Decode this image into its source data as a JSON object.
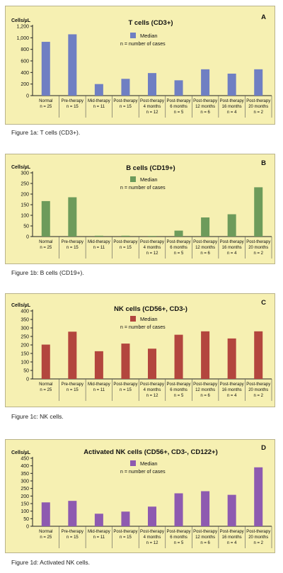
{
  "categories": [
    [
      "Normal",
      "n = 25"
    ],
    [
      "Pre-therapy",
      "n = 15"
    ],
    [
      "Mid-therapy",
      "n = 11"
    ],
    [
      "Post-therapy",
      "n = 15"
    ],
    [
      "Post-therapy",
      "4 months",
      "n = 12"
    ],
    [
      "Post-therapy",
      "6 months",
      "n = 5"
    ],
    [
      "Post-therapy",
      "12 months",
      "n = 6"
    ],
    [
      "Post-therapy",
      "16 months",
      "n = 4"
    ],
    [
      "Post-therapy",
      "20 months",
      "n = 2"
    ]
  ],
  "legend_note": "n = number of cases",
  "captions": [
    "Figure 1a: T cells (CD3+).",
    "Figure 1b: B cells (CD19+).",
    "Figure 1c: NK cells.",
    "Figure 1d: Activated NK cells."
  ],
  "chart_data": [
    {
      "type": "bar",
      "letter": "A",
      "title": "T cells (CD3+)",
      "ylabel": "Cells/µL",
      "series_name": "Median",
      "color": "#6f7fc3",
      "ylim": [
        0,
        1200
      ],
      "yticks": [
        "0",
        "200",
        "400",
        "600",
        "800",
        "1,000",
        "1,200"
      ],
      "values": [
        930,
        1060,
        200,
        290,
        390,
        265,
        455,
        380,
        455
      ]
    },
    {
      "type": "bar",
      "letter": "B",
      "title": "B cells (CD19+)",
      "ylabel": "Cells/µL",
      "series_name": "Median",
      "color": "#6d9b5b",
      "ylim": [
        0,
        300
      ],
      "yticks": [
        "0",
        "50",
        "100",
        "150",
        "200",
        "250",
        "300"
      ],
      "values": [
        167,
        185,
        4,
        4,
        3,
        28,
        90,
        105,
        232
      ]
    },
    {
      "type": "bar",
      "letter": "C",
      "title": "NK cells (CD56+, CD3-)",
      "ylabel": "Cells/µL",
      "series_name": "Median",
      "color": "#b3463e",
      "ylim": [
        0,
        400
      ],
      "yticks": [
        "0",
        "50",
        "100",
        "150",
        "200",
        "250",
        "300",
        "350",
        "400"
      ],
      "values": [
        202,
        278,
        163,
        208,
        178,
        260,
        280,
        238,
        280
      ]
    },
    {
      "type": "bar",
      "letter": "D",
      "title": "Activated NK cells (CD56+, CD3-, CD122+)",
      "ylabel": "Cells/µL",
      "series_name": "Median",
      "color": "#8e5ab0",
      "ylim": [
        0,
        450
      ],
      "yticks": [
        "0",
        "50",
        "100",
        "150",
        "200",
        "250",
        "300",
        "350",
        "400",
        "450"
      ],
      "values": [
        158,
        168,
        83,
        97,
        130,
        218,
        232,
        208,
        390
      ]
    }
  ]
}
